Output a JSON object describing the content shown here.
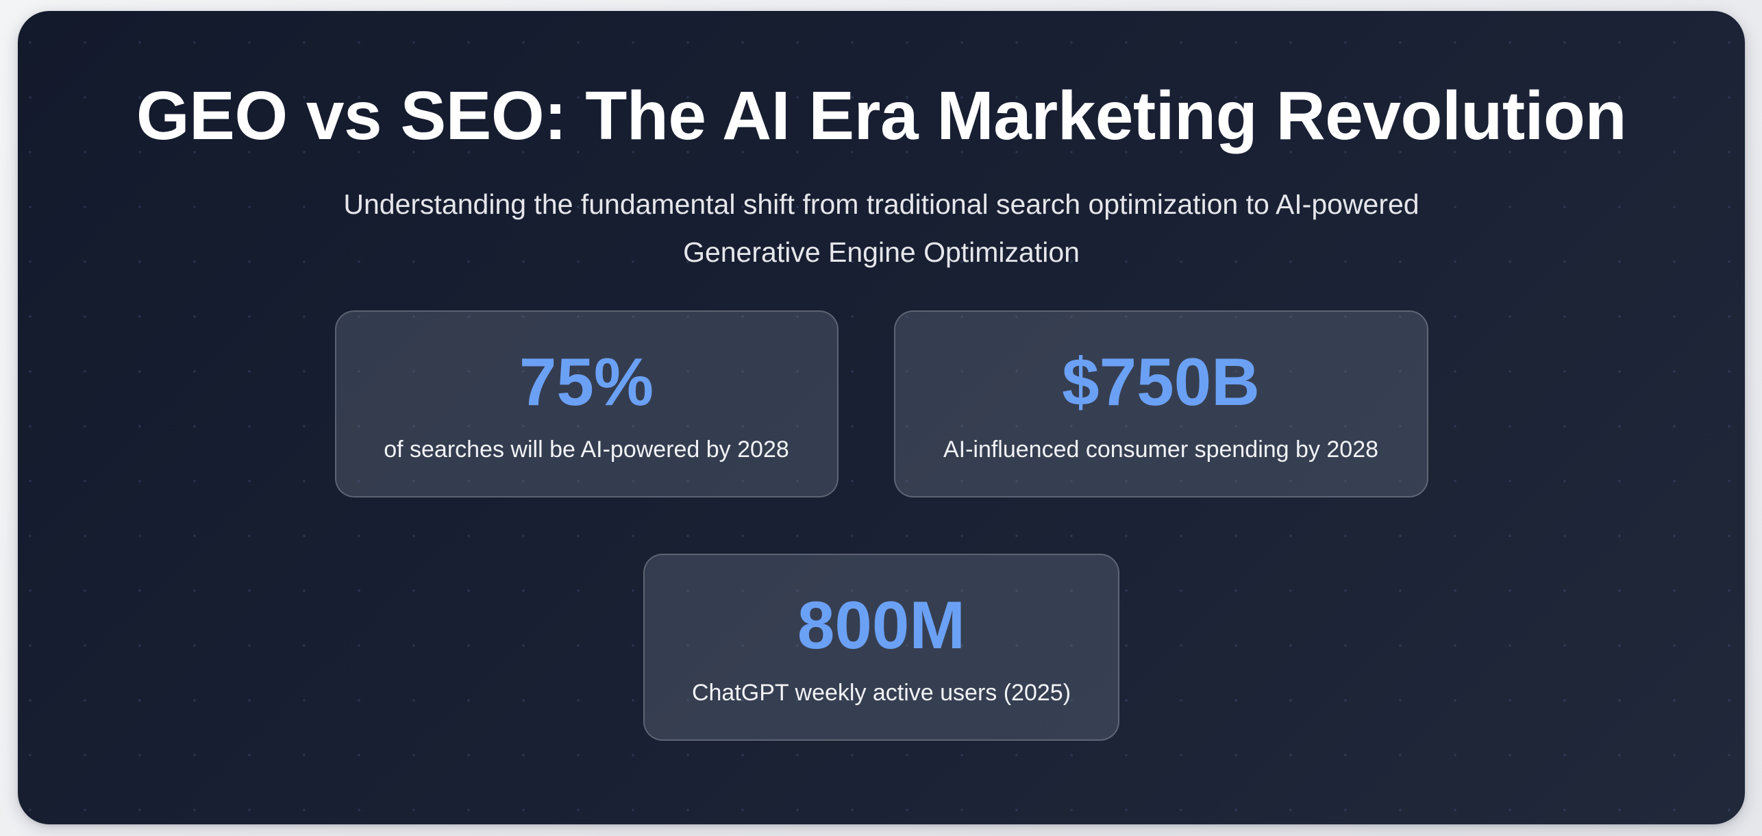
{
  "hero": {
    "title": "GEO vs SEO: The AI Era Marketing Revolution",
    "subtitle": "Understanding the fundamental shift from traditional search optimization to AI-powered Generative Engine Optimization"
  },
  "stats": [
    {
      "value": "75%",
      "label": "of searches will be AI-powered by 2028"
    },
    {
      "value": "$750B",
      "label": "AI-influenced consumer spending by 2028"
    },
    {
      "value": "800M",
      "label": "ChatGPT weekly active users (2025)"
    }
  ],
  "colors": {
    "background_dark": "#131a2c",
    "background_dark_end": "#20283a",
    "accent_stat": "#6ba1f5",
    "title_text": "#ffffff",
    "body_text": "#e5e7eb",
    "page_background": "#f3f4f6"
  }
}
